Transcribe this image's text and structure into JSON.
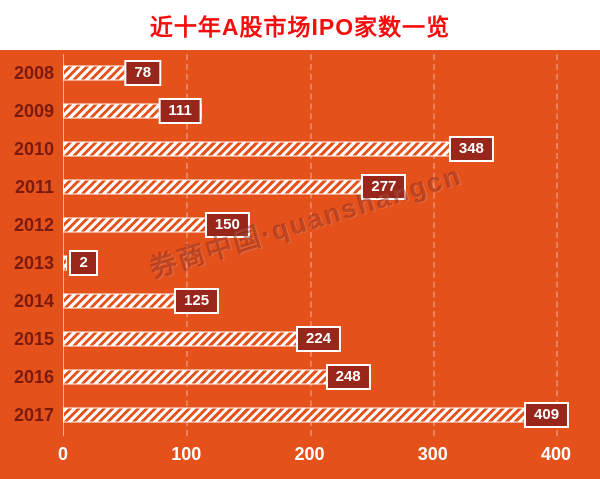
{
  "watermark": "券商中国·quanshangcn",
  "chart_data": {
    "type": "bar",
    "orientation": "horizontal",
    "title": "近十年A股市场IPO家数一览",
    "categories": [
      "2008",
      "2009",
      "2010",
      "2011",
      "2012",
      "2013",
      "2014",
      "2015",
      "2016",
      "2017"
    ],
    "values": [
      78,
      111,
      348,
      277,
      150,
      2,
      125,
      224,
      248,
      409
    ],
    "xlabel": "",
    "ylabel": "",
    "xlim": [
      0,
      400
    ],
    "xticks": [
      0,
      100,
      200,
      300,
      400
    ],
    "grid": "dashed-vertical",
    "legend": "none",
    "colors": {
      "background": "#e4511b",
      "title_text": "#f50d0d",
      "title_band": "#ffffff",
      "bar_stripe": "#ffffff",
      "badge_bg": "#99261a",
      "badge_border": "#ffffff",
      "badge_text": "#ffffff",
      "year_label": "#7a1a0e",
      "axis_text": "#ffffff"
    }
  }
}
